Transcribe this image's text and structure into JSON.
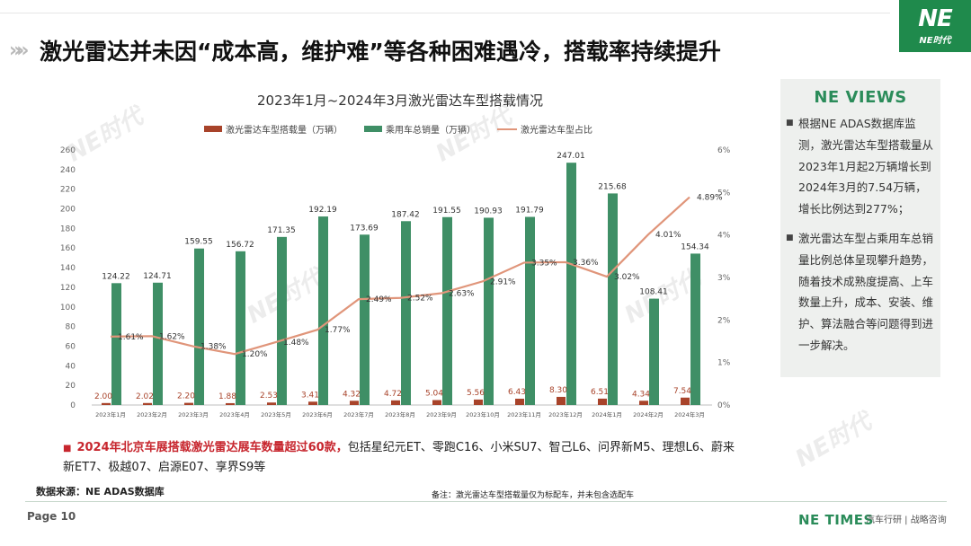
{
  "header": {
    "title": "激光雷达并未因“成本高，维护难”等各种困难遇冷，搭载率持续提升",
    "logo_mark": "NE",
    "logo_sub": "NE时代"
  },
  "chart_data": {
    "type": "bar",
    "title": "2023年1月~2024年3月激光雷达车型搭载情况",
    "categories": [
      "2023年1月",
      "2023年2月",
      "2023年3月",
      "2023年4月",
      "2023年5月",
      "2023年6月",
      "2023年7月",
      "2023年8月",
      "2023年9月",
      "2023年10月",
      "2023年11月",
      "2023年12月",
      "2024年1月",
      "2024年2月",
      "2024年3月"
    ],
    "series": [
      {
        "name": "激光雷达车型搭载量（万辆）",
        "type": "bar",
        "axis": "left",
        "color": "#a8432a",
        "values": [
          2.0,
          2.02,
          2.2,
          1.88,
          2.53,
          3.41,
          4.32,
          4.72,
          5.04,
          5.56,
          6.43,
          8.3,
          6.51,
          4.34,
          7.54
        ]
      },
      {
        "name": "乘用车总销量（万辆）",
        "type": "bar",
        "axis": "left",
        "color": "#3f8f66",
        "values": [
          124.22,
          124.71,
          159.55,
          156.72,
          171.35,
          192.19,
          173.69,
          187.42,
          191.55,
          190.93,
          191.79,
          247.01,
          215.68,
          108.41,
          154.34
        ]
      },
      {
        "name": "激光雷达车型占比",
        "type": "line",
        "axis": "right",
        "color": "#e0957a",
        "values": [
          1.61,
          1.62,
          1.38,
          1.2,
          1.48,
          1.77,
          2.49,
          2.52,
          2.63,
          2.91,
          3.35,
          3.36,
          3.02,
          4.01,
          4.89
        ],
        "labels": [
          "1.61%",
          "1.62%",
          "1.38%",
          "1.20%",
          "1.48%",
          "1.77%",
          "2.49%",
          "2.52%",
          "2.63%",
          "2.91%",
          "3.35%",
          "3.36%",
          "3.02%",
          "4.01%",
          "4.89%"
        ]
      }
    ],
    "left_axis": {
      "min": 0,
      "max": 260,
      "ticks": [
        "0",
        "20",
        "40",
        "60",
        "80",
        "100",
        "120",
        "140",
        "160",
        "180",
        "200",
        "220",
        "240",
        "260"
      ]
    },
    "right_axis": {
      "min": 0,
      "max": 6,
      "ticks": [
        "0%",
        "1%",
        "2%",
        "3%",
        "4%",
        "5%",
        "6%"
      ]
    },
    "legend_position": "top"
  },
  "views": {
    "title": "NE VIEWS",
    "bullet": "■",
    "items": [
      "根据NE ADAS数据库监测，激光雷达车型搭载量从2023年1月起2万辆增长到2024年3月的7.54万辆，增长比例达到277%；",
      "激光雷达车型占乘用车总销量比例总体呈现攀升趋势，随着技术成熟度提高、上车数量上升，成本、安装、维护、算法融合等问题得到进一步解决。"
    ]
  },
  "note": {
    "bullet": "■",
    "highlight": "2024年北京车展搭载激光雷达展车数量超过60款，",
    "text": "包括星纪元ET、零跑C16、小米SU7、智己L6、问界新M5、理想L6、蔚来新ET7、极越07、启源E07、享界S9等"
  },
  "footer": {
    "source": "数据来源：NE ADAS数据库",
    "remark": "备注：激光雷达车型搭载量仅为标配车，并未包含选配车",
    "page": "Page 10",
    "brand": "NE TIMES",
    "brand_sub": "汽车行研 | 战略咨询"
  },
  "watermark": "NE时代"
}
